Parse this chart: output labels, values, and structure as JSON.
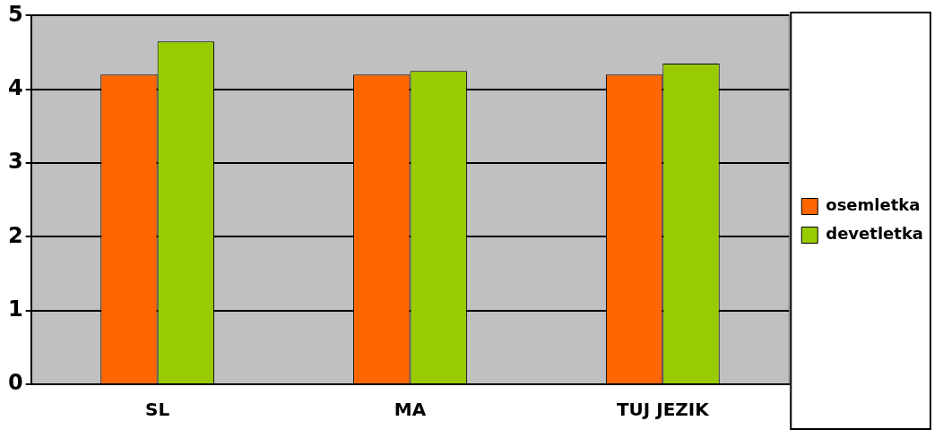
{
  "chart_data": {
    "type": "bar",
    "categories": [
      "SL",
      "MA",
      "TUJ JEZIK"
    ],
    "series": [
      {
        "name": "osemletka",
        "color": "#ff6600",
        "values": [
          4.2,
          4.2,
          4.2
        ]
      },
      {
        "name": "devetletka",
        "color": "#99cc00",
        "values": [
          4.65,
          4.25,
          4.35
        ]
      }
    ],
    "ylim": [
      0,
      5
    ],
    "yticks": [
      0,
      1,
      2,
      3,
      4,
      5
    ],
    "grid": "y",
    "legend": "right"
  }
}
